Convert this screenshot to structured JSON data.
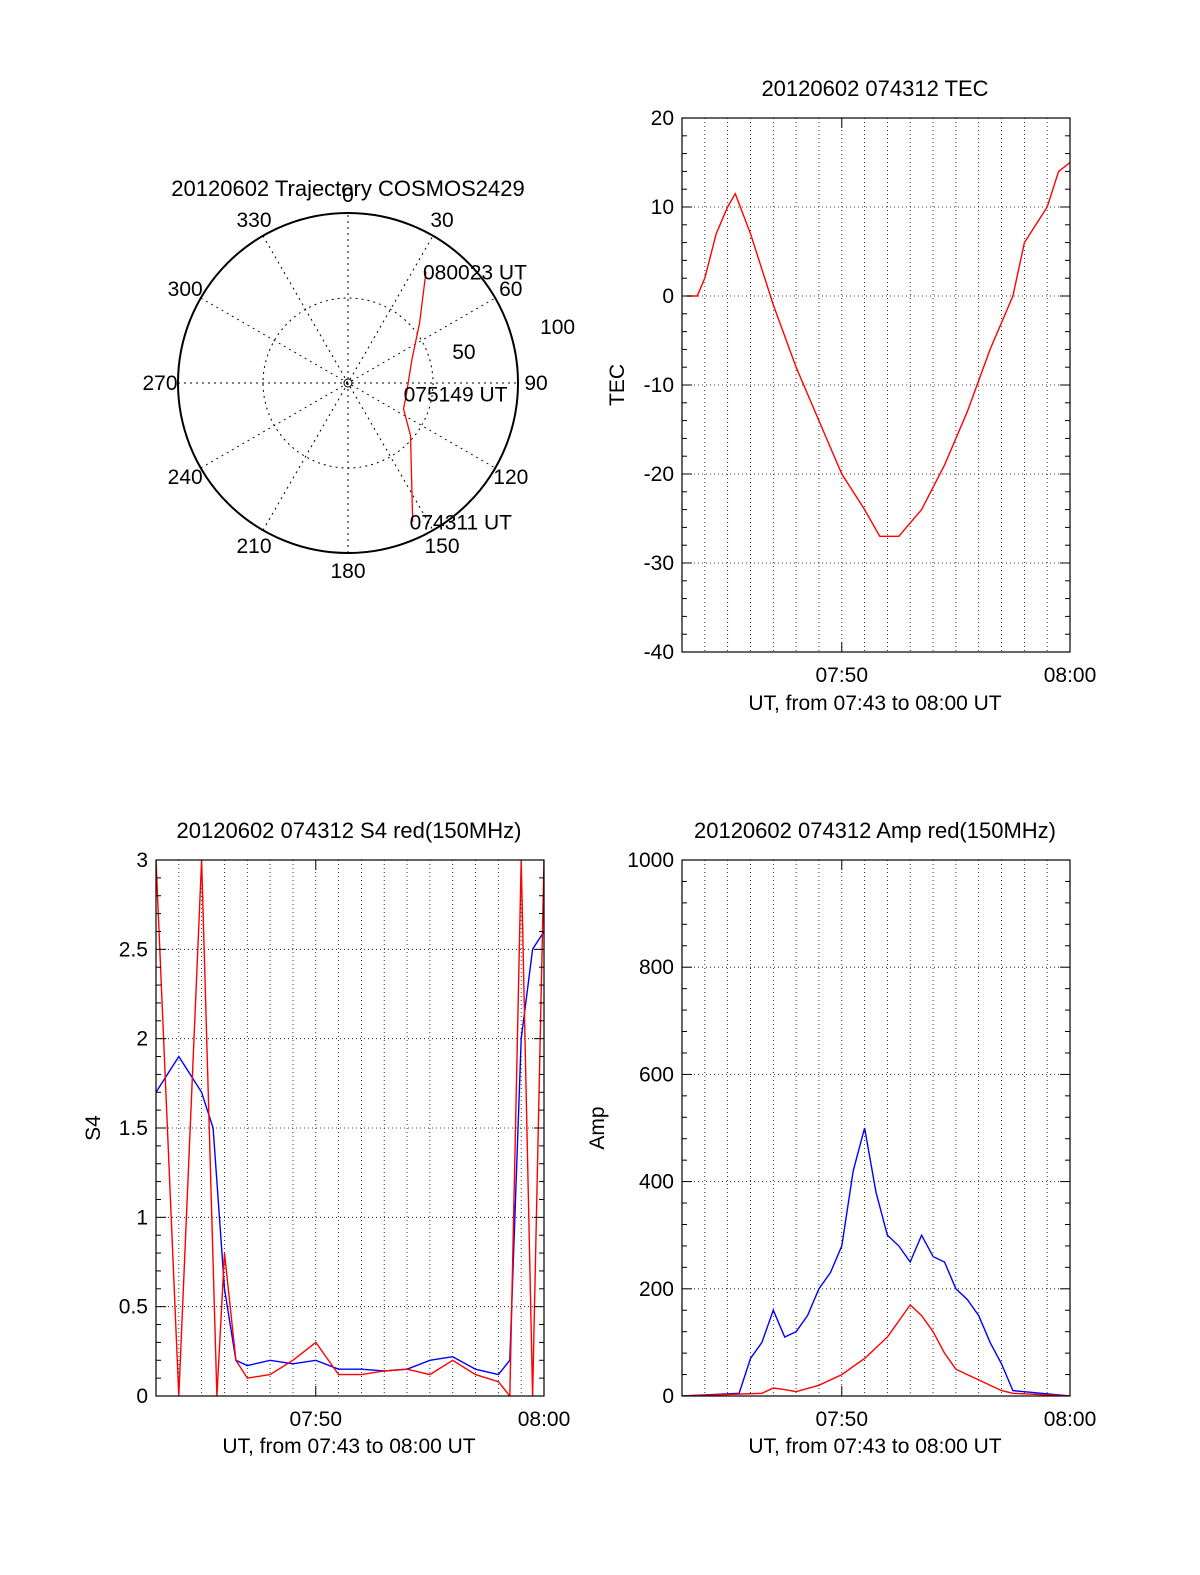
{
  "figure": {
    "colors": {
      "red": "#ff0000",
      "blue": "#0000ff",
      "axis": "#000000",
      "grid": "#000000"
    }
  },
  "chart_data": [
    {
      "type": "polar",
      "title": "20120602 Trajectory COSMOS2429",
      "angle_labels": [
        "0",
        "30",
        "60",
        "90",
        "120",
        "150",
        "180",
        "210",
        "240",
        "270",
        "300",
        "330"
      ],
      "radius_labels": [
        "50",
        "100"
      ],
      "radius_range": [
        0,
        100
      ],
      "grid": true,
      "series": [
        {
          "color": "#ff0000",
          "points": [
            {
              "az": 155,
              "r": 90
            },
            {
              "az": 130,
              "r": 48
            },
            {
              "az": 115,
              "r": 36
            },
            {
              "az": 100,
              "r": 35
            },
            {
              "az": 85,
              "r": 36
            },
            {
              "az": 70,
              "r": 40
            },
            {
              "az": 50,
              "r": 55
            },
            {
              "az": 35,
              "r": 80
            }
          ]
        }
      ],
      "annotations": [
        {
          "text": "080023 UT",
          "az": 35,
          "r": 80
        },
        {
          "text": "075149 UT",
          "az": 100,
          "r": 35
        },
        {
          "text": "074311 UT",
          "az": 155,
          "r": 90
        }
      ]
    },
    {
      "type": "line",
      "title": "20120602 074312 TEC",
      "xlabel": "UT, from 07:43 to 08:00 UT",
      "ylabel": "TEC",
      "xlim": [
        "07:43",
        "08:00"
      ],
      "ylim": [
        -40,
        20
      ],
      "xticks": [
        "07:50",
        "08:00"
      ],
      "yticks": [
        "-40",
        "-30",
        "-20",
        "-10",
        "0",
        "10",
        "20"
      ],
      "grid": true,
      "series": [
        {
          "color": "#ff0000",
          "x": [
            "07:43:12",
            "07:43:40",
            "07:44:00",
            "07:44:30",
            "07:45:00",
            "07:45:20",
            "07:46:00",
            "07:47:00",
            "07:48:00",
            "07:49:00",
            "07:50:00",
            "07:51:00",
            "07:51:40",
            "07:52:30",
            "07:53:30",
            "07:54:30",
            "07:55:30",
            "07:56:30",
            "07:57:30",
            "07:58:00",
            "07:58:30",
            "07:59:00",
            "07:59:30",
            "08:00:00"
          ],
          "y": [
            0,
            0,
            2,
            7,
            10,
            11.5,
            7,
            -1,
            -8,
            -14,
            -20,
            -24,
            -27,
            -27,
            -24,
            -19,
            -13,
            -6,
            0,
            6,
            8,
            10,
            14,
            15
          ]
        }
      ]
    },
    {
      "type": "line",
      "title": "20120602 074312 S4 red(150MHz)",
      "xlabel": "UT, from 07:43 to 08:00 UT",
      "ylabel": "S4",
      "xlim": [
        "07:43",
        "08:00"
      ],
      "ylim": [
        0,
        3
      ],
      "xticks": [
        "07:50",
        "08:00"
      ],
      "yticks": [
        "0",
        "0.5",
        "1",
        "1.5",
        "2",
        "2.5",
        "3"
      ],
      "grid": true,
      "series": [
        {
          "color": "#0000ff",
          "x": [
            "07:43",
            "07:43:30",
            "07:44:00",
            "07:44:30",
            "07:45:00",
            "07:45:30",
            "07:46:00",
            "07:46:30",
            "07:47:00",
            "07:48:00",
            "07:49:00",
            "07:50:00",
            "07:51:00",
            "07:52:00",
            "07:53:00",
            "07:54:00",
            "07:55:00",
            "07:56:00",
            "07:57:00",
            "07:58:00",
            "07:58:30",
            "07:59:00",
            "07:59:30",
            "08:00:00"
          ],
          "y": [
            1.7,
            1.8,
            1.9,
            1.8,
            1.7,
            1.5,
            0.6,
            0.2,
            0.17,
            0.2,
            0.18,
            0.2,
            0.15,
            0.15,
            0.14,
            0.15,
            0.2,
            0.22,
            0.15,
            0.12,
            0.2,
            2.0,
            2.5,
            2.6
          ]
        },
        {
          "color": "#ff0000",
          "x": [
            "07:43",
            "07:44:00",
            "07:45:00",
            "07:45:40",
            "07:46:00",
            "07:46:30",
            "07:47:00",
            "07:48:00",
            "07:49:00",
            "07:50:00",
            "07:51:00",
            "07:52:00",
            "07:53:00",
            "07:54:00",
            "07:55:00",
            "07:56:00",
            "07:57:00",
            "07:58:00",
            "07:58:30",
            "07:59:00",
            "07:59:30",
            "08:00:00"
          ],
          "y": [
            3.0,
            0.0,
            3.0,
            0.0,
            0.8,
            0.2,
            0.1,
            0.12,
            0.2,
            0.3,
            0.12,
            0.12,
            0.14,
            0.15,
            0.12,
            0.2,
            0.12,
            0.08,
            0.0,
            3.0,
            0.0,
            3.0
          ]
        }
      ]
    },
    {
      "type": "line",
      "title": "20120602 074312 Amp red(150MHz)",
      "xlabel": "UT, from 07:43 to 08:00 UT",
      "ylabel": "Amp",
      "xlim": [
        "07:43",
        "08:00"
      ],
      "ylim": [
        0,
        1000
      ],
      "xticks": [
        "07:50",
        "08:00"
      ],
      "yticks": [
        "0",
        "200",
        "400",
        "600",
        "800",
        "1000"
      ],
      "grid": true,
      "series": [
        {
          "color": "#0000ff",
          "x": [
            "07:43:00",
            "07:45:30",
            "07:46:00",
            "07:46:30",
            "07:47:00",
            "07:47:30",
            "07:48:00",
            "07:48:30",
            "07:49:00",
            "07:49:30",
            "07:50:00",
            "07:50:30",
            "07:51:00",
            "07:51:30",
            "07:52:00",
            "07:52:30",
            "07:53:00",
            "07:53:30",
            "07:54:00",
            "07:54:30",
            "07:55:00",
            "07:55:30",
            "07:56:00",
            "07:56:30",
            "07:57:00",
            "07:57:30",
            "08:00:00"
          ],
          "y": [
            0,
            5,
            70,
            100,
            160,
            110,
            120,
            150,
            200,
            230,
            280,
            420,
            500,
            380,
            300,
            280,
            250,
            300,
            260,
            250,
            200,
            180,
            150,
            100,
            60,
            10,
            0
          ]
        },
        {
          "color": "#ff0000",
          "x": [
            "07:43:00",
            "07:46:30",
            "07:47:00",
            "07:47:30",
            "07:48:00",
            "07:49:00",
            "07:50:00",
            "07:51:00",
            "07:52:00",
            "07:52:30",
            "07:53:00",
            "07:53:30",
            "07:54:00",
            "07:54:30",
            "07:55:00",
            "07:55:30",
            "07:56:00",
            "07:56:30",
            "07:57:00",
            "07:57:30",
            "08:00:00"
          ],
          "y": [
            0,
            5,
            15,
            12,
            8,
            20,
            40,
            70,
            110,
            140,
            170,
            150,
            120,
            80,
            50,
            40,
            30,
            20,
            10,
            5,
            0
          ]
        }
      ]
    }
  ]
}
